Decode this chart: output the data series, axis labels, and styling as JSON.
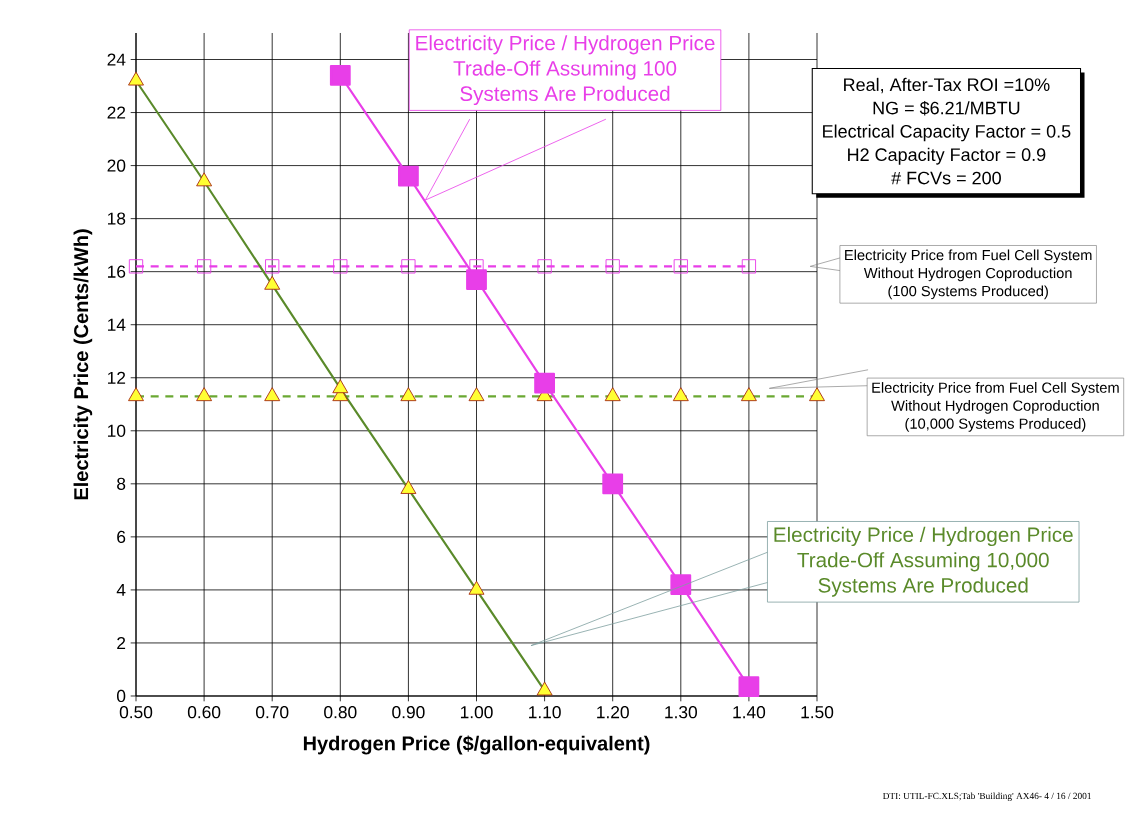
{
  "chart_data": {
    "type": "line",
    "xlabel": "Hydrogen Price ($/gallon-equivalent)",
    "ylabel": "Electricity Price (Cents/kWh)",
    "xlim": [
      0.5,
      1.5
    ],
    "ylim": [
      0,
      25
    ],
    "xticks": [
      {
        "value": 0.5,
        "label": "0.50"
      },
      {
        "value": 0.6,
        "label": "0.60"
      },
      {
        "value": 0.7,
        "label": "0.70"
      },
      {
        "value": 0.8,
        "label": "0.80"
      },
      {
        "value": 0.9,
        "label": "0.90"
      },
      {
        "value": 1.0,
        "label": "1.00"
      },
      {
        "value": 1.1,
        "label": "1.10"
      },
      {
        "value": 1.2,
        "label": "1.20"
      },
      {
        "value": 1.3,
        "label": "1.30"
      },
      {
        "value": 1.4,
        "label": "1.40"
      },
      {
        "value": 1.5,
        "label": "1.50"
      }
    ],
    "yticks": [
      0,
      2,
      4,
      6,
      8,
      10,
      12,
      14,
      16,
      18,
      20,
      22,
      24
    ],
    "grid": true,
    "series": [
      {
        "color": "#5a8a2a",
        "marker": "triangle",
        "line_style": "solid",
        "x": [
          0.5,
          0.6,
          0.7,
          0.8,
          0.9,
          1.0,
          1.1
        ],
        "values": [
          23.2,
          19.4,
          15.5,
          11.6,
          7.8,
          4.0,
          0.2
        ]
      },
      {
        "color": "#e83ee8",
        "marker": "square",
        "line_style": "solid",
        "x": [
          0.8,
          0.9,
          1.0,
          1.1,
          1.2,
          1.3,
          1.4
        ],
        "values": [
          23.4,
          19.6,
          15.7,
          11.8,
          8.0,
          4.2,
          0.35
        ]
      },
      {
        "color": "#e83ee8",
        "marker": "square",
        "line_style": "dashed",
        "x": [
          0.5,
          0.6,
          0.7,
          0.8,
          0.9,
          1.0,
          1.1,
          1.2,
          1.3,
          1.4
        ],
        "values": [
          16.2,
          16.2,
          16.2,
          16.2,
          16.2,
          16.2,
          16.2,
          16.2,
          16.2,
          16.2
        ]
      },
      {
        "color": "#6aa832",
        "marker": "triangle",
        "line_style": "dashed",
        "x": [
          0.5,
          0.6,
          0.7,
          0.8,
          0.9,
          1.0,
          1.1,
          1.2,
          1.3,
          1.4,
          1.5
        ],
        "values": [
          11.3,
          11.3,
          11.3,
          11.3,
          11.3,
          11.3,
          11.3,
          11.3,
          11.3,
          11.3,
          11.3
        ]
      }
    ],
    "annotations": [
      "Electricity Price / Hydrogen Price",
      "Trade-Off Assuming 100",
      "Systems Are Produced",
      "Real, After-Tax ROI =10%",
      "NG = $6.21/MBTU",
      "Electrical Capacity Factor = 0.5",
      "H2 Capacity Factor = 0.9",
      "# FCVs = 200",
      "Electricity Price from Fuel Cell System",
      "Without Hydrogen Coproduction",
      "(100 Systems Produced)",
      "Electricity Price from Fuel Cell System",
      "Without Hydrogen Coproduction",
      "(10,000 Systems Produced)",
      "Electricity Price / Hydrogen Price",
      "Trade-Off Assuming 10,000",
      "Systems Are Produced",
      "DTI: UTIL-FC.XLS;Tab 'Building' AX46- 4 / 16 / 2001"
    ]
  }
}
